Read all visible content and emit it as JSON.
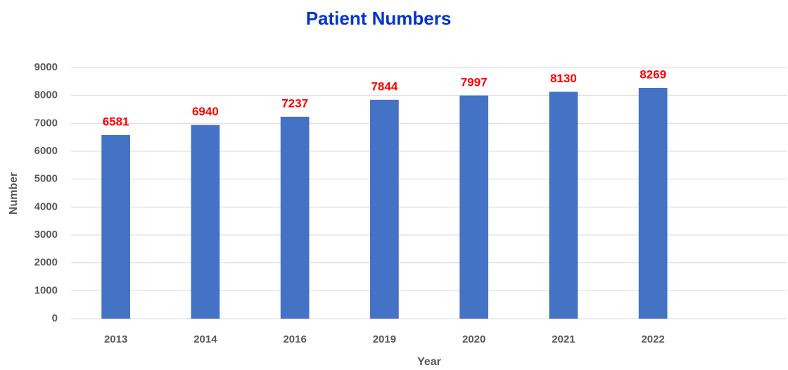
{
  "chart_data": {
    "type": "bar",
    "title": "Patient Numbers",
    "x_label": "Year",
    "y_label": "Number",
    "categories": [
      "2013",
      "2014",
      "2016",
      "2019",
      "2020",
      "2021",
      "2022",
      null
    ],
    "values": [
      6581,
      6940,
      7237,
      7844,
      7997,
      8130,
      8269,
      null
    ],
    "color": "#4472c4",
    "label_color": "#ff0000",
    "ylim": [
      0,
      9000
    ],
    "yticks": [
      0,
      1000,
      2000,
      3000,
      4000,
      5000,
      6000,
      7000,
      8000,
      9000
    ],
    "grid": true
  }
}
